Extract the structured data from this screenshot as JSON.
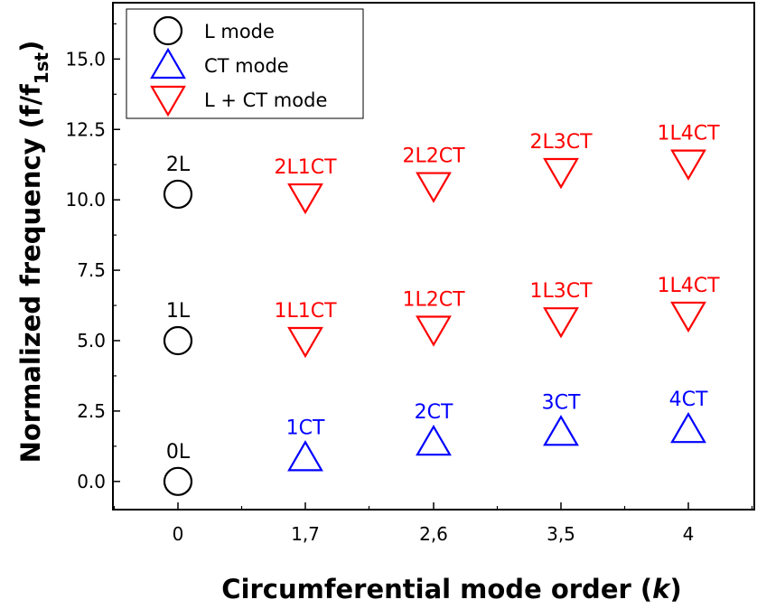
{
  "chart_data": {
    "type": "scatter",
    "xlabel": "Circumferential mode order (",
    "xlabel_italic": "k",
    "xlabel_close": ")",
    "ylabel_main": "Normalized frequency (f/f",
    "ylabel_sub": "1st",
    "ylabel_close": ")",
    "categories": [
      "0",
      "1,7",
      "2,6",
      "3,5",
      "4"
    ],
    "ylim": [
      -1.0,
      17.0
    ],
    "yticks": [
      0.0,
      2.5,
      5.0,
      7.5,
      10.0,
      12.5,
      15.0
    ],
    "ytick_labels": [
      "0.0",
      "2.5",
      "5.0",
      "7.5",
      "10.0",
      "12.5",
      "15.0"
    ],
    "grid": false,
    "legend_position": "top-left",
    "series": [
      {
        "name": "L mode",
        "marker": "circle",
        "color": "#000000",
        "points": [
          {
            "x": "0",
            "y": 0.0,
            "label": "0L"
          },
          {
            "x": "0",
            "y": 5.0,
            "label": "1L"
          },
          {
            "x": "0",
            "y": 10.2,
            "label": "2L"
          }
        ]
      },
      {
        "name": "CT mode",
        "marker": "triangle-up",
        "color": "#0000ff",
        "points": [
          {
            "x": "1,7",
            "y": 0.85,
            "label": "1CT"
          },
          {
            "x": "2,6",
            "y": 1.4,
            "label": "2CT"
          },
          {
            "x": "3,5",
            "y": 1.75,
            "label": "3CT"
          },
          {
            "x": "4",
            "y": 1.85,
            "label": "4CT"
          }
        ]
      },
      {
        "name": "L + CT mode",
        "marker": "triangle-down",
        "color": "#ff0000",
        "points": [
          {
            "x": "1,7",
            "y": 5.0,
            "label": "1L1CT"
          },
          {
            "x": "2,6",
            "y": 5.4,
            "label": "1L2CT"
          },
          {
            "x": "3,5",
            "y": 5.7,
            "label": "1L3CT"
          },
          {
            "x": "4",
            "y": 5.9,
            "label": "1L4CT"
          },
          {
            "x": "1,7",
            "y": 10.1,
            "label": "2L1CT"
          },
          {
            "x": "2,6",
            "y": 10.5,
            "label": "2L2CT"
          },
          {
            "x": "3,5",
            "y": 11.0,
            "label": "2L3CT"
          },
          {
            "x": "4",
            "y": 11.3,
            "label": "1L4CT"
          }
        ]
      }
    ]
  }
}
